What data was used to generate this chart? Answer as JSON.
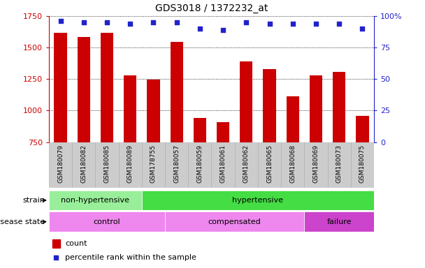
{
  "title": "GDS3018 / 1372232_at",
  "samples": [
    "GSM180079",
    "GSM180082",
    "GSM180085",
    "GSM180089",
    "GSM178755",
    "GSM180057",
    "GSM180059",
    "GSM180061",
    "GSM180062",
    "GSM180065",
    "GSM180068",
    "GSM180069",
    "GSM180073",
    "GSM180075"
  ],
  "counts": [
    1620,
    1585,
    1615,
    1280,
    1245,
    1545,
    940,
    910,
    1390,
    1330,
    1115,
    1280,
    1305,
    960
  ],
  "percentiles": [
    96,
    95,
    95,
    94,
    95,
    95,
    90,
    89,
    95,
    94,
    94,
    94,
    94,
    90
  ],
  "ylim_left": [
    750,
    1750
  ],
  "ylim_right": [
    0,
    100
  ],
  "yticks_left": [
    750,
    1000,
    1250,
    1500,
    1750
  ],
  "yticks_right": [
    0,
    25,
    50,
    75,
    100
  ],
  "ytick_right_labels": [
    "0",
    "25",
    "50",
    "75",
    "100%"
  ],
  "bar_color": "#cc0000",
  "dot_color": "#2222cc",
  "bar_bottom": 750,
  "strain_groups": [
    {
      "label": "non-hypertensive",
      "start": 0,
      "end": 4,
      "color": "#99ee99"
    },
    {
      "label": "hypertensive",
      "start": 4,
      "end": 14,
      "color": "#44dd44"
    }
  ],
  "disease_groups": [
    {
      "label": "control",
      "start": 0,
      "end": 5,
      "color": "#ee88ee"
    },
    {
      "label": "compensated",
      "start": 5,
      "end": 11,
      "color": "#ee88ee"
    },
    {
      "label": "failure",
      "start": 11,
      "end": 14,
      "color": "#cc44cc"
    }
  ],
  "legend_count_label": "count",
  "legend_percentile_label": "percentile rank within the sample",
  "strain_label": "strain",
  "disease_label": "disease state",
  "left_axis_color": "#cc0000",
  "right_axis_color": "#2222cc",
  "grid_linestyle": "dotted",
  "xtick_bg_color": "#cccccc",
  "xtick_edge_color": "#aaaaaa"
}
